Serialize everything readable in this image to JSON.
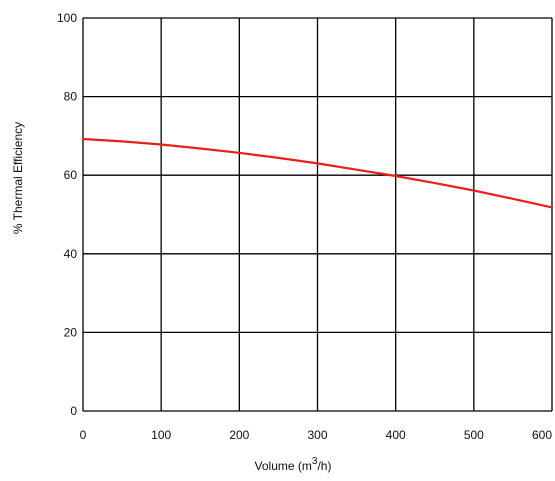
{
  "chart_data": {
    "type": "line",
    "title": "",
    "xlabel": "Volume (m³/h)",
    "xlabel_parts": [
      "Volume (m",
      "3",
      "/h)"
    ],
    "ylabel": "% Thermal Efficiency",
    "xlim": [
      0,
      600
    ],
    "ylim": [
      0,
      100
    ],
    "x_ticks": [
      0,
      100,
      200,
      300,
      400,
      500,
      600
    ],
    "y_ticks": [
      0,
      20,
      40,
      60,
      80,
      100
    ],
    "x_tick_labels": [
      "0",
      "100",
      "200",
      "300",
      "400",
      "500",
      "600"
    ],
    "y_tick_labels": [
      "0",
      "20",
      "40",
      "60",
      "80",
      "100"
    ],
    "grid": true,
    "series": [
      {
        "color": "#e8201c",
        "x": [
          0,
          50,
          100,
          150,
          200,
          250,
          300,
          350,
          400,
          450,
          500,
          550,
          600
        ],
        "y": [
          69.2,
          68.6,
          67.8,
          66.8,
          65.7,
          64.4,
          63.0,
          61.4,
          59.8,
          58.0,
          56.1,
          54.0,
          51.8
        ]
      }
    ]
  }
}
